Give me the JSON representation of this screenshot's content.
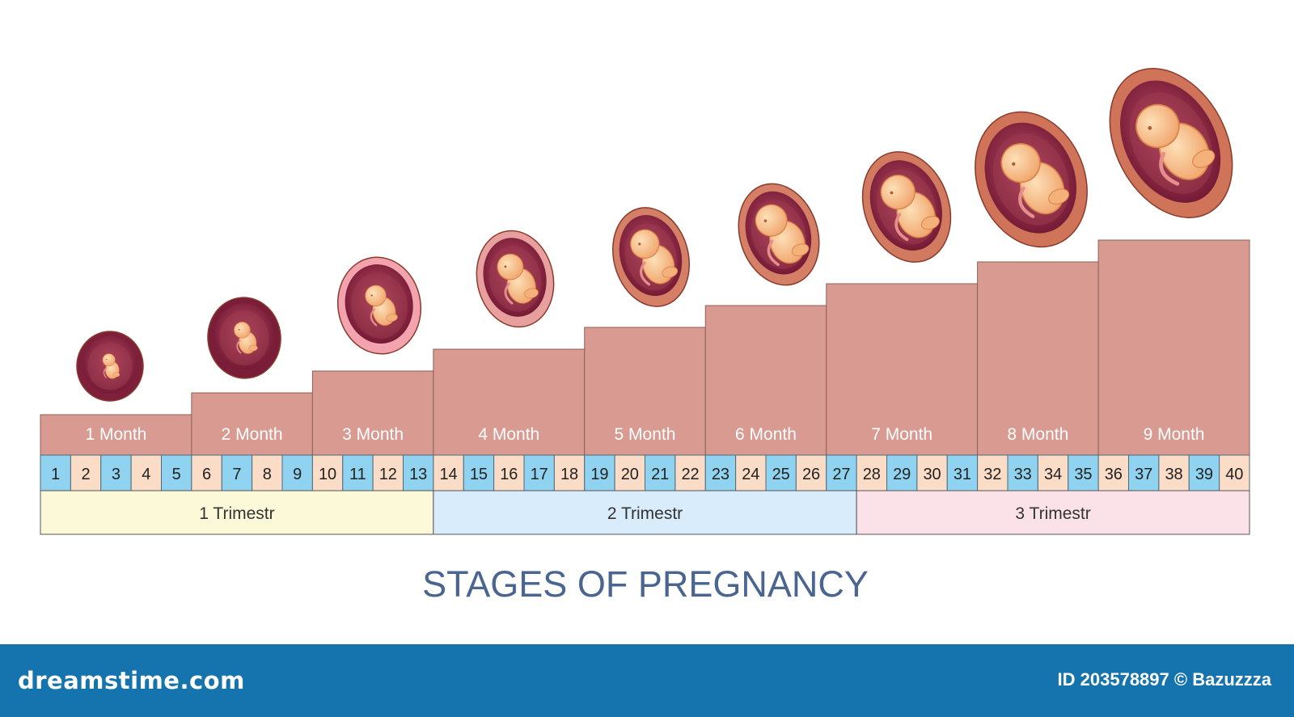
{
  "title": "STAGES OF PREGNANCY",
  "months": [
    {
      "label": "1 Month",
      "weeks": [
        1,
        2,
        3,
        4,
        5
      ]
    },
    {
      "label": "2 Month",
      "weeks": [
        6,
        7,
        8,
        9
      ]
    },
    {
      "label": "3 Month",
      "weeks": [
        10,
        11,
        12,
        13
      ]
    },
    {
      "label": "4 Month",
      "weeks": [
        14,
        15,
        16,
        17,
        18
      ]
    },
    {
      "label": "5 Month",
      "weeks": [
        19,
        20,
        21,
        22
      ]
    },
    {
      "label": "6 Month",
      "weeks": [
        23,
        24,
        25,
        26
      ]
    },
    {
      "label": "7 Month",
      "weeks": [
        27,
        28,
        29,
        30,
        31
      ]
    },
    {
      "label": "8 Month",
      "weeks": [
        32,
        33,
        34,
        35
      ]
    },
    {
      "label": "9 Month",
      "weeks": [
        36,
        37,
        38,
        39,
        40
      ]
    }
  ],
  "trimesters": [
    {
      "label": "1 Trimestr",
      "from_week": 1,
      "to_week": 13
    },
    {
      "label": "2 Trimestr",
      "from_week": 14,
      "to_week": 27
    },
    {
      "label": "3 Trimestr",
      "from_week": 28,
      "to_week": 40
    }
  ],
  "footer": {
    "site": "dreamstime.com",
    "credit": "ID 203578897 © Bazuzzza"
  },
  "colors": {
    "step": "#d99b91",
    "week_blue": "#8fd3f0",
    "week_peach": "#fbdcc7",
    "trimester_1": "#fcf9d8",
    "trimester_2": "#d9ecfb",
    "trimester_3": "#fbe2e8",
    "title": "#4a6590",
    "footer_bar": "#1574ad"
  }
}
